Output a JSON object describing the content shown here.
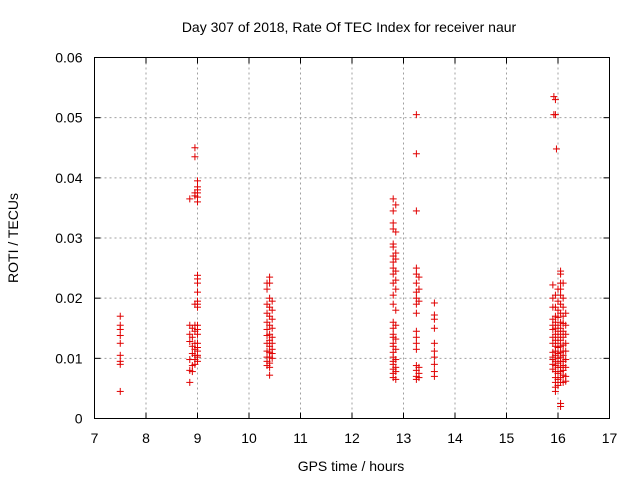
{
  "chart_data": {
    "type": "scatter",
    "title": "Day 307 of 2018, Rate Of TEC Index for receiver naur",
    "xlabel": "GPS time / hours",
    "ylabel": "ROTI / TECUs",
    "xlim": [
      7,
      17
    ],
    "ylim": [
      0,
      0.06
    ],
    "xticks": [
      "7",
      "8",
      "9",
      "10",
      "11",
      "12",
      "13",
      "14",
      "15",
      "16",
      "17"
    ],
    "yticks": [
      "0",
      "0.01",
      "0.02",
      "0.03",
      "0.04",
      "0.05",
      "0.06"
    ],
    "grid": true,
    "marker": "plus",
    "color": "#e00000",
    "points": [
      [
        7.5,
        0.017
      ],
      [
        7.5,
        0.0155
      ],
      [
        7.5,
        0.0148
      ],
      [
        7.5,
        0.0138
      ],
      [
        7.5,
        0.0125
      ],
      [
        7.5,
        0.0105
      ],
      [
        7.5,
        0.0095
      ],
      [
        7.5,
        0.009
      ],
      [
        7.5,
        0.0045
      ],
      [
        8.85,
        0.0365
      ],
      [
        8.85,
        0.0155
      ],
      [
        8.85,
        0.014
      ],
      [
        8.85,
        0.0128
      ],
      [
        8.85,
        0.0098
      ],
      [
        8.85,
        0.008
      ],
      [
        8.85,
        0.006
      ],
      [
        8.9,
        0.015
      ],
      [
        8.9,
        0.0135
      ],
      [
        8.9,
        0.012
      ],
      [
        8.9,
        0.0108
      ],
      [
        8.9,
        0.0088
      ],
      [
        8.9,
        0.0078
      ],
      [
        8.95,
        0.045
      ],
      [
        8.95,
        0.0435
      ],
      [
        8.95,
        0.0375
      ],
      [
        8.95,
        0.037
      ],
      [
        8.95,
        0.019
      ],
      [
        8.95,
        0.0155
      ],
      [
        8.95,
        0.0145
      ],
      [
        8.95,
        0.0125
      ],
      [
        8.95,
        0.0115
      ],
      [
        8.95,
        0.0105
      ],
      [
        8.95,
        0.0098
      ],
      [
        8.95,
        0.009
      ],
      [
        9.0,
        0.0395
      ],
      [
        9.0,
        0.0385
      ],
      [
        9.0,
        0.038
      ],
      [
        9.0,
        0.0375
      ],
      [
        9.0,
        0.0368
      ],
      [
        9.0,
        0.036
      ],
      [
        9.0,
        0.0238
      ],
      [
        9.0,
        0.0232
      ],
      [
        9.0,
        0.0225
      ],
      [
        9.0,
        0.021
      ],
      [
        9.0,
        0.0195
      ],
      [
        9.0,
        0.019
      ],
      [
        9.0,
        0.0185
      ],
      [
        9.0,
        0.0155
      ],
      [
        9.0,
        0.0148
      ],
      [
        9.0,
        0.014
      ],
      [
        9.0,
        0.0125
      ],
      [
        9.0,
        0.0118
      ],
      [
        9.0,
        0.0112
      ],
      [
        9.0,
        0.0105
      ],
      [
        9.0,
        0.0102
      ],
      [
        9.0,
        0.0095
      ],
      [
        10.35,
        0.0225
      ],
      [
        10.35,
        0.0215
      ],
      [
        10.35,
        0.019
      ],
      [
        10.35,
        0.0175
      ],
      [
        10.35,
        0.016
      ],
      [
        10.35,
        0.0148
      ],
      [
        10.35,
        0.0138
      ],
      [
        10.35,
        0.0125
      ],
      [
        10.35,
        0.0112
      ],
      [
        10.35,
        0.0102
      ],
      [
        10.35,
        0.0095
      ],
      [
        10.35,
        0.0088
      ],
      [
        10.4,
        0.0235
      ],
      [
        10.4,
        0.0225
      ],
      [
        10.4,
        0.02
      ],
      [
        10.4,
        0.0185
      ],
      [
        10.4,
        0.017
      ],
      [
        10.4,
        0.0155
      ],
      [
        10.4,
        0.014
      ],
      [
        10.4,
        0.013
      ],
      [
        10.4,
        0.012
      ],
      [
        10.4,
        0.011
      ],
      [
        10.4,
        0.0102
      ],
      [
        10.4,
        0.0092
      ],
      [
        10.4,
        0.0085
      ],
      [
        10.4,
        0.0072
      ],
      [
        10.45,
        0.0195
      ],
      [
        10.45,
        0.018
      ],
      [
        10.45,
        0.0165
      ],
      [
        10.45,
        0.015
      ],
      [
        10.45,
        0.0135
      ],
      [
        10.45,
        0.0125
      ],
      [
        10.45,
        0.0115
      ],
      [
        10.45,
        0.0108
      ],
      [
        10.45,
        0.01
      ],
      [
        12.8,
        0.0365
      ],
      [
        12.8,
        0.0345
      ],
      [
        12.8,
        0.0325
      ],
      [
        12.8,
        0.0315
      ],
      [
        12.8,
        0.029
      ],
      [
        12.8,
        0.0285
      ],
      [
        12.8,
        0.027
      ],
      [
        12.8,
        0.026
      ],
      [
        12.8,
        0.025
      ],
      [
        12.8,
        0.024
      ],
      [
        12.8,
        0.0225
      ],
      [
        12.8,
        0.0205
      ],
      [
        12.8,
        0.019
      ],
      [
        12.8,
        0.016
      ],
      [
        12.8,
        0.015
      ],
      [
        12.8,
        0.014
      ],
      [
        12.8,
        0.0135
      ],
      [
        12.8,
        0.0125
      ],
      [
        12.8,
        0.012
      ],
      [
        12.8,
        0.011
      ],
      [
        12.8,
        0.0102
      ],
      [
        12.8,
        0.0095
      ],
      [
        12.8,
        0.009
      ],
      [
        12.8,
        0.0082
      ],
      [
        12.8,
        0.0075
      ],
      [
        12.8,
        0.0068
      ],
      [
        12.85,
        0.0355
      ],
      [
        12.85,
        0.031
      ],
      [
        12.85,
        0.0275
      ],
      [
        12.85,
        0.0265
      ],
      [
        12.85,
        0.0245
      ],
      [
        12.85,
        0.023
      ],
      [
        12.85,
        0.0215
      ],
      [
        12.85,
        0.018
      ],
      [
        12.85,
        0.0155
      ],
      [
        12.85,
        0.0132
      ],
      [
        12.85,
        0.0115
      ],
      [
        12.85,
        0.0098
      ],
      [
        12.85,
        0.0085
      ],
      [
        12.85,
        0.0078
      ],
      [
        12.85,
        0.0065
      ],
      [
        13.25,
        0.0505
      ],
      [
        13.25,
        0.044
      ],
      [
        13.25,
        0.0345
      ],
      [
        13.25,
        0.025
      ],
      [
        13.25,
        0.024
      ],
      [
        13.25,
        0.0225
      ],
      [
        13.25,
        0.021
      ],
      [
        13.25,
        0.02
      ],
      [
        13.25,
        0.019
      ],
      [
        13.25,
        0.0175
      ],
      [
        13.25,
        0.0145
      ],
      [
        13.25,
        0.0135
      ],
      [
        13.25,
        0.0125
      ],
      [
        13.25,
        0.0115
      ],
      [
        13.25,
        0.0088
      ],
      [
        13.25,
        0.008
      ],
      [
        13.25,
        0.007
      ],
      [
        13.25,
        0.0065
      ],
      [
        13.3,
        0.0235
      ],
      [
        13.3,
        0.0215
      ],
      [
        13.3,
        0.0195
      ],
      [
        13.3,
        0.0085
      ],
      [
        13.3,
        0.0075
      ],
      [
        13.3,
        0.0068
      ],
      [
        13.6,
        0.0192
      ],
      [
        13.6,
        0.0172
      ],
      [
        13.6,
        0.0165
      ],
      [
        13.6,
        0.015
      ],
      [
        13.6,
        0.0125
      ],
      [
        13.6,
        0.0112
      ],
      [
        13.6,
        0.0102
      ],
      [
        13.6,
        0.009
      ],
      [
        13.6,
        0.0078
      ],
      [
        13.6,
        0.007
      ],
      [
        15.92,
        0.0535
      ],
      [
        15.95,
        0.053
      ],
      [
        15.92,
        0.0505
      ],
      [
        15.95,
        0.0505
      ],
      [
        15.97,
        0.0448
      ],
      [
        15.9,
        0.0222
      ],
      [
        15.9,
        0.02
      ],
      [
        15.9,
        0.0185
      ],
      [
        15.9,
        0.0165
      ],
      [
        15.9,
        0.0155
      ],
      [
        15.9,
        0.0148
      ],
      [
        15.9,
        0.0135
      ],
      [
        15.9,
        0.0125
      ],
      [
        15.9,
        0.011
      ],
      [
        15.9,
        0.0102
      ],
      [
        15.9,
        0.0098
      ],
      [
        15.9,
        0.009
      ],
      [
        15.9,
        0.0082
      ],
      [
        15.95,
        0.0205
      ],
      [
        15.95,
        0.0185
      ],
      [
        15.95,
        0.017
      ],
      [
        15.95,
        0.016
      ],
      [
        15.95,
        0.015
      ],
      [
        15.95,
        0.014
      ],
      [
        15.95,
        0.013
      ],
      [
        15.95,
        0.012
      ],
      [
        15.95,
        0.0112
      ],
      [
        15.95,
        0.0105
      ],
      [
        15.95,
        0.0095
      ],
      [
        15.95,
        0.0088
      ],
      [
        15.95,
        0.0078
      ],
      [
        15.95,
        0.0068
      ],
      [
        15.95,
        0.006
      ],
      [
        15.95,
        0.0052
      ],
      [
        15.95,
        0.0045
      ],
      [
        16.0,
        0.0215
      ],
      [
        16.0,
        0.0195
      ],
      [
        16.0,
        0.018
      ],
      [
        16.0,
        0.0168
      ],
      [
        16.0,
        0.0155
      ],
      [
        16.0,
        0.0145
      ],
      [
        16.0,
        0.0135
      ],
      [
        16.0,
        0.0125
      ],
      [
        16.0,
        0.0118
      ],
      [
        16.0,
        0.0108
      ],
      [
        16.0,
        0.01
      ],
      [
        16.0,
        0.0092
      ],
      [
        16.0,
        0.0085
      ],
      [
        16.0,
        0.0075
      ],
      [
        16.0,
        0.0065
      ],
      [
        16.0,
        0.0055
      ],
      [
        16.05,
        0.0245
      ],
      [
        16.05,
        0.024
      ],
      [
        16.05,
        0.0225
      ],
      [
        16.05,
        0.0215
      ],
      [
        16.05,
        0.0205
      ],
      [
        16.05,
        0.019
      ],
      [
        16.05,
        0.0175
      ],
      [
        16.05,
        0.016
      ],
      [
        16.05,
        0.015
      ],
      [
        16.05,
        0.014
      ],
      [
        16.05,
        0.013
      ],
      [
        16.05,
        0.012
      ],
      [
        16.05,
        0.011
      ],
      [
        16.05,
        0.0102
      ],
      [
        16.05,
        0.0095
      ],
      [
        16.05,
        0.0085
      ],
      [
        16.05,
        0.0078
      ],
      [
        16.05,
        0.0068
      ],
      [
        16.05,
        0.006
      ],
      [
        16.05,
        0.0025
      ],
      [
        16.05,
        0.002
      ],
      [
        16.1,
        0.0225
      ],
      [
        16.1,
        0.02
      ],
      [
        16.1,
        0.0185
      ],
      [
        16.1,
        0.017
      ],
      [
        16.1,
        0.0158
      ],
      [
        16.1,
        0.0145
      ],
      [
        16.1,
        0.0135
      ],
      [
        16.1,
        0.0122
      ],
      [
        16.1,
        0.0112
      ],
      [
        16.1,
        0.0105
      ],
      [
        16.1,
        0.0095
      ],
      [
        16.1,
        0.0088
      ],
      [
        16.1,
        0.008
      ],
      [
        16.1,
        0.0072
      ],
      [
        16.1,
        0.006
      ],
      [
        16.15,
        0.0175
      ],
      [
        16.15,
        0.0155
      ],
      [
        16.15,
        0.014
      ],
      [
        16.15,
        0.0125
      ],
      [
        16.15,
        0.0112
      ],
      [
        16.15,
        0.0098
      ],
      [
        16.15,
        0.0085
      ],
      [
        16.15,
        0.007
      ],
      [
        16.15,
        0.0062
      ]
    ]
  }
}
